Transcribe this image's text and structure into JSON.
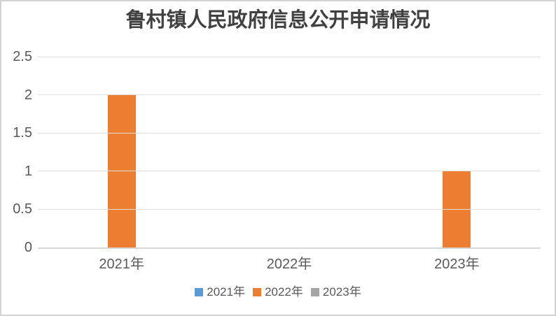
{
  "chart_data": {
    "type": "bar",
    "title": "鲁村镇人民政府信息公开申请情况",
    "categories": [
      "2021年",
      "2022年",
      "2023年"
    ],
    "series": [
      {
        "name": "2021年",
        "color": "#5B9BD5",
        "values": [
          null,
          null,
          null
        ]
      },
      {
        "name": "2022年",
        "color": "#ED7D31",
        "values": [
          2,
          null,
          1
        ]
      },
      {
        "name": "2023年",
        "color": "#A5A5A5",
        "values": [
          null,
          null,
          null
        ]
      }
    ],
    "ylim": [
      0,
      2.5
    ],
    "yticks": [
      0,
      0.5,
      1,
      1.5,
      2,
      2.5
    ],
    "ytick_labels": [
      "0",
      "0.5",
      "1",
      "1.5",
      "2",
      "2.5"
    ],
    "xlabel": "",
    "ylabel": "",
    "grid": true,
    "legend_position": "bottom",
    "legend_entries": [
      "2021年",
      "2022年",
      "2023年"
    ],
    "colors": {
      "title": "#404040",
      "tick_label": "#595959",
      "grid_line": "#DFDFDF",
      "axis_line": "#D8D8D8",
      "frame_border": "#D2D2D2",
      "background": "#FFFFFF",
      "legend_2021": "#5B9BD5",
      "legend_2022": "#ED7D31",
      "legend_2023": "#A5A5A5"
    }
  }
}
